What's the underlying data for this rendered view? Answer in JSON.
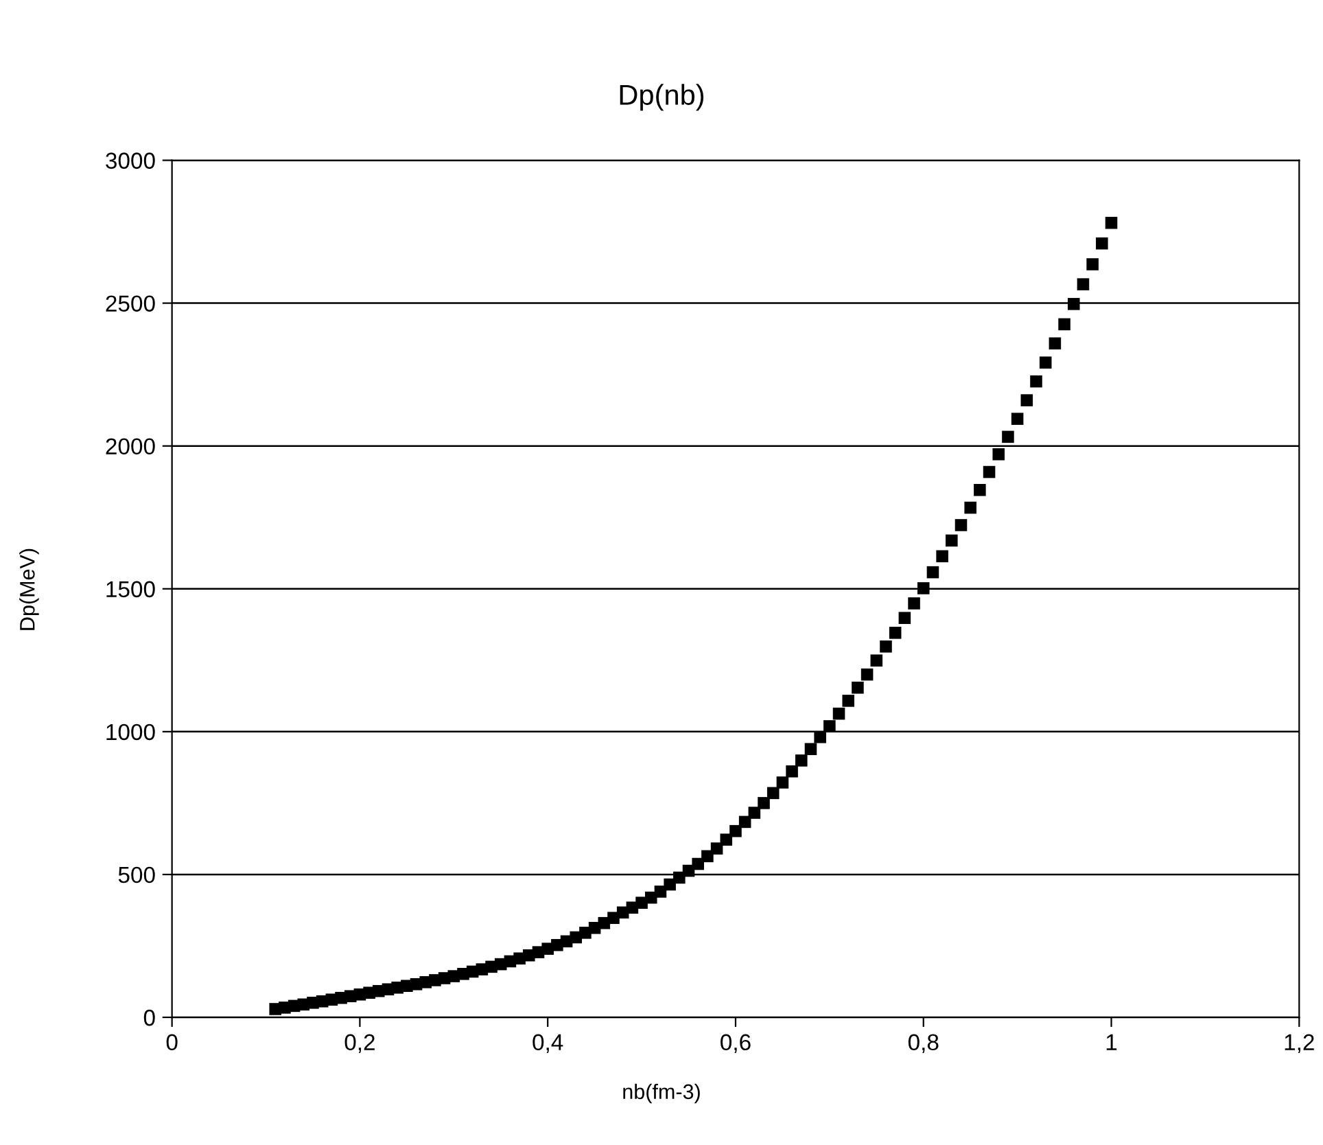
{
  "chart_data": {
    "type": "scatter",
    "title": "Dp(nb)",
    "xlabel": "nb(fm-3)",
    "ylabel": "Dp(MeV)",
    "x": [
      0.11,
      0.12,
      0.13,
      0.14,
      0.15,
      0.16,
      0.17,
      0.18,
      0.19,
      0.2,
      0.21,
      0.22,
      0.23,
      0.24,
      0.25,
      0.26,
      0.27,
      0.28,
      0.29,
      0.3,
      0.31,
      0.32,
      0.33,
      0.34,
      0.35,
      0.36,
      0.37,
      0.38,
      0.39,
      0.4,
      0.41,
      0.42,
      0.43,
      0.44,
      0.45,
      0.46,
      0.47,
      0.48,
      0.49,
      0.5,
      0.51,
      0.52,
      0.53,
      0.54,
      0.55,
      0.56,
      0.57,
      0.58,
      0.59,
      0.6,
      0.61,
      0.62,
      0.63,
      0.64,
      0.65,
      0.66,
      0.67,
      0.68,
      0.69,
      0.7,
      0.71,
      0.72,
      0.73,
      0.74,
      0.75,
      0.76,
      0.77,
      0.78,
      0.79,
      0.8,
      0.81,
      0.82,
      0.83,
      0.84,
      0.85,
      0.86,
      0.87,
      0.88,
      0.89,
      0.9,
      0.91,
      0.92,
      0.93,
      0.94,
      0.95,
      0.96,
      0.97,
      0.98,
      0.99,
      1.0
    ],
    "series": [
      {
        "color": "#000000",
        "values": [
          29,
          34,
          40,
          45,
          51,
          56,
          62,
          68,
          74,
          80,
          86,
          92,
          98,
          104,
          110,
          116,
          123,
          130,
          137,
          144,
          152,
          160,
          168,
          177,
          186,
          196,
          206,
          217,
          228,
          240,
          253,
          266,
          280,
          296,
          313,
          330,
          348,
          367,
          384,
          401,
          419,
          440,
          465,
          489,
          513,
          537,
          564,
          591,
          622,
          652,
          684,
          716,
          750,
          785,
          822,
          861,
          899,
          939,
          981,
          1019,
          1063,
          1108,
          1154,
          1200,
          1249,
          1298,
          1346,
          1398,
          1449,
          1502,
          1558,
          1614,
          1669,
          1723,
          1784,
          1846,
          1909,
          1971,
          2032,
          2095,
          2160,
          2226,
          2292,
          2359,
          2426,
          2497,
          2566,
          2636,
          2709,
          2781
        ]
      }
    ],
    "xlim": [
      0,
      1.2
    ],
    "xticks": [
      0,
      {
        "value": 0.2,
        "label": "0,2"
      },
      {
        "value": 0.4,
        "label": "0,4"
      },
      {
        "value": 0.6,
        "label": "0,6"
      },
      {
        "value": 0.8,
        "label": "0,8"
      },
      1,
      {
        "value": 1.2,
        "label": "1,2"
      }
    ],
    "ylim": [
      0,
      3000
    ],
    "yticks": [
      0,
      500,
      1000,
      1500,
      2000,
      2500,
      3000
    ],
    "grid": "y",
    "marker": "square",
    "legend": false
  }
}
